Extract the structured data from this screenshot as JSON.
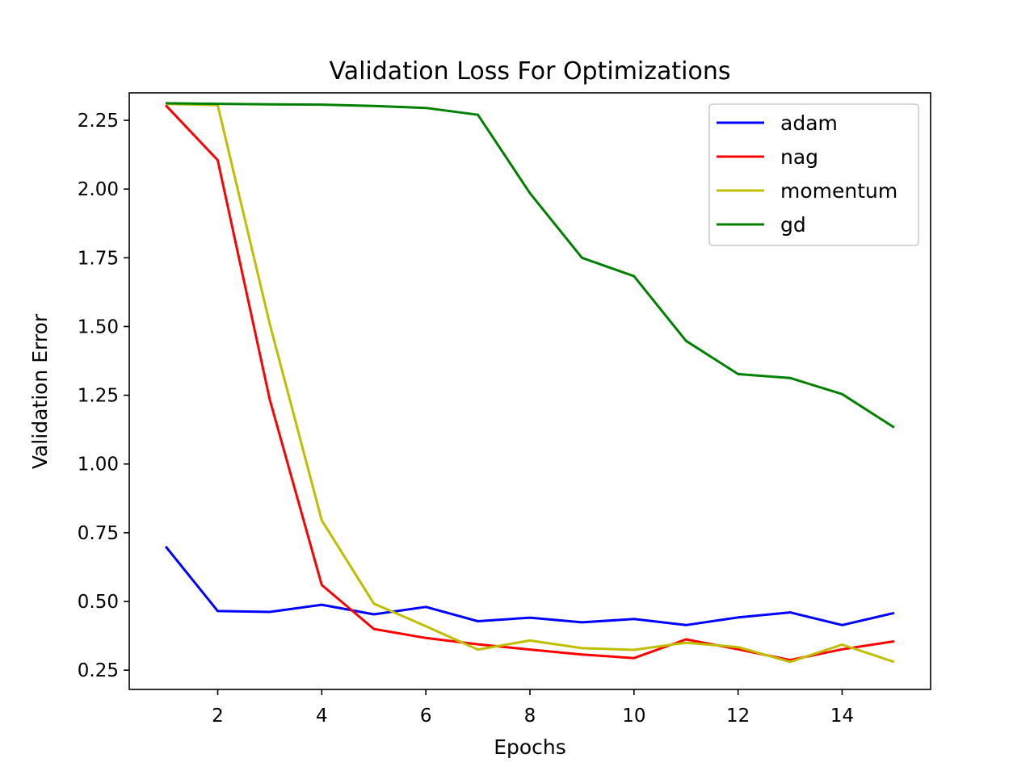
{
  "chart_data": {
    "type": "line",
    "title": "Validation Loss For Optimizations",
    "xlabel": "Epochs",
    "ylabel": "Validation Error",
    "x": [
      1,
      2,
      3,
      4,
      5,
      6,
      7,
      8,
      9,
      10,
      11,
      12,
      13,
      14,
      15
    ],
    "xlim": [
      0.3,
      15.7
    ],
    "ylim": [
      0.18,
      2.35
    ],
    "xticks": [
      2,
      4,
      6,
      8,
      10,
      12,
      14
    ],
    "yticks": [
      0.25,
      0.5,
      0.75,
      1.0,
      1.25,
      1.5,
      1.75,
      2.0,
      2.25
    ],
    "grid": false,
    "legend_position": "top-right",
    "series": [
      {
        "name": "adam",
        "color": "#0000ff",
        "values": [
          0.7,
          0.465,
          0.462,
          0.488,
          0.453,
          0.48,
          0.428,
          0.441,
          0.424,
          0.436,
          0.414,
          0.442,
          0.46,
          0.414,
          0.458
        ]
      },
      {
        "name": "nag",
        "color": "#ff0000",
        "values": [
          2.305,
          2.105,
          1.235,
          0.56,
          0.4,
          0.367,
          0.344,
          0.325,
          0.307,
          0.294,
          0.362,
          0.326,
          0.287,
          0.326,
          0.355
        ]
      },
      {
        "name": "momentum",
        "color": "#bfbf00",
        "values": [
          2.31,
          2.305,
          1.51,
          0.795,
          0.492,
          0.41,
          0.325,
          0.358,
          0.33,
          0.324,
          0.35,
          0.334,
          0.28,
          0.343,
          0.28
        ]
      },
      {
        "name": "gd",
        "color": "#008000",
        "values": [
          2.312,
          2.31,
          2.308,
          2.307,
          2.302,
          2.295,
          2.27,
          1.985,
          1.75,
          1.683,
          1.448,
          1.327,
          1.313,
          1.254,
          1.133
        ]
      }
    ]
  }
}
